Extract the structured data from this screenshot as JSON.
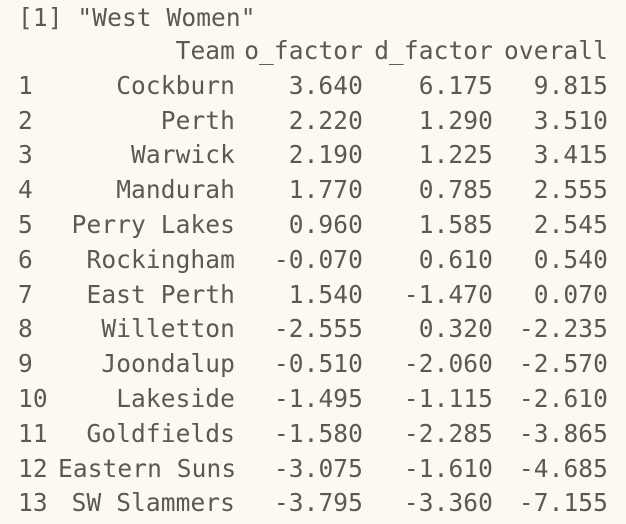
{
  "console": {
    "prompt_line": "[1] \"West Women\"",
    "headers": {
      "index": "",
      "team": "Team",
      "o_factor": "o_factor",
      "d_factor": "d_factor",
      "overall": "overall"
    },
    "rows": [
      {
        "idx": "1",
        "team": "Cockburn",
        "o": "3.640",
        "d": "6.175",
        "overall": "9.815"
      },
      {
        "idx": "2",
        "team": "Perth",
        "o": "2.220",
        "d": "1.290",
        "overall": "3.510"
      },
      {
        "idx": "3",
        "team": "Warwick",
        "o": "2.190",
        "d": "1.225",
        "overall": "3.415"
      },
      {
        "idx": "4",
        "team": "Mandurah",
        "o": "1.770",
        "d": "0.785",
        "overall": "2.555"
      },
      {
        "idx": "5",
        "team": "Perry Lakes",
        "o": "0.960",
        "d": "1.585",
        "overall": "2.545"
      },
      {
        "idx": "6",
        "team": "Rockingham",
        "o": "-0.070",
        "d": "0.610",
        "overall": "0.540"
      },
      {
        "idx": "7",
        "team": "East Perth",
        "o": "1.540",
        "d": "-1.470",
        "overall": "0.070"
      },
      {
        "idx": "8",
        "team": "Willetton",
        "o": "-2.555",
        "d": "0.320",
        "overall": "-2.235"
      },
      {
        "idx": "9",
        "team": "Joondalup",
        "o": "-0.510",
        "d": "-2.060",
        "overall": "-2.570"
      },
      {
        "idx": "10",
        "team": "Lakeside",
        "o": "-1.495",
        "d": "-1.115",
        "overall": "-2.610"
      },
      {
        "idx": "11",
        "team": "Goldfields",
        "o": "-1.580",
        "d": "-2.285",
        "overall": "-3.865"
      },
      {
        "idx": "12",
        "team": "Eastern Suns",
        "o": "-3.075",
        "d": "-1.610",
        "overall": "-4.685"
      },
      {
        "idx": "13",
        "team": "SW Slammers",
        "o": "-3.795",
        "d": "-3.360",
        "overall": "-7.155"
      }
    ]
  }
}
